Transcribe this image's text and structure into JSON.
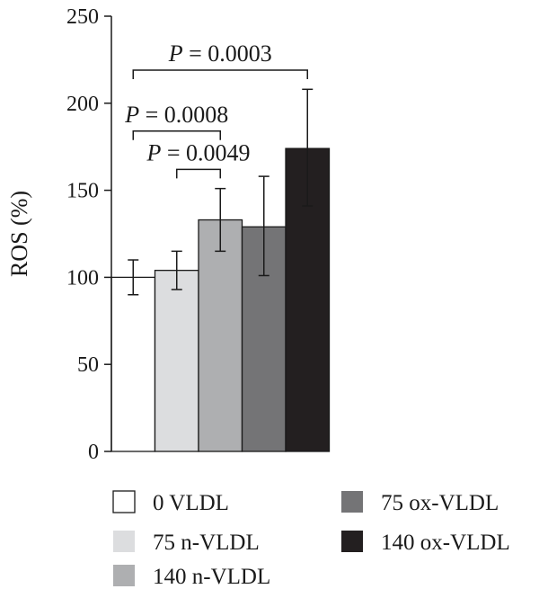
{
  "chart_data": {
    "type": "bar",
    "title": "",
    "xlabel": "",
    "ylabel": "ROS (%)",
    "ylim": [
      0,
      250
    ],
    "yticks": [
      0,
      50,
      100,
      150,
      200,
      250
    ],
    "grid": false,
    "legend_placement": "bottom",
    "categories": [
      "0 VLDL",
      "75 n-VLDL",
      "140 n-VLDL",
      "75 ox-VLDL",
      "140 ox-VLDL"
    ],
    "values": [
      100,
      104,
      133,
      129,
      174
    ],
    "error_low": [
      90,
      93,
      115,
      101,
      141
    ],
    "error_high": [
      110,
      115,
      151,
      158,
      208
    ],
    "colors": [
      "#ffffff",
      "#dcdddf",
      "#aeafb1",
      "#747476",
      "#231f20"
    ],
    "significance": [
      {
        "symbol": "P",
        "text": " = 0.0003",
        "from": 0,
        "to": 4,
        "y": 219
      },
      {
        "symbol": "P",
        "text": " = 0.0008",
        "from": 0,
        "to": 2,
        "y": 184
      },
      {
        "symbol": "P",
        "text": " = 0.0049",
        "from": 1,
        "to": 2,
        "y": 162
      }
    ]
  }
}
